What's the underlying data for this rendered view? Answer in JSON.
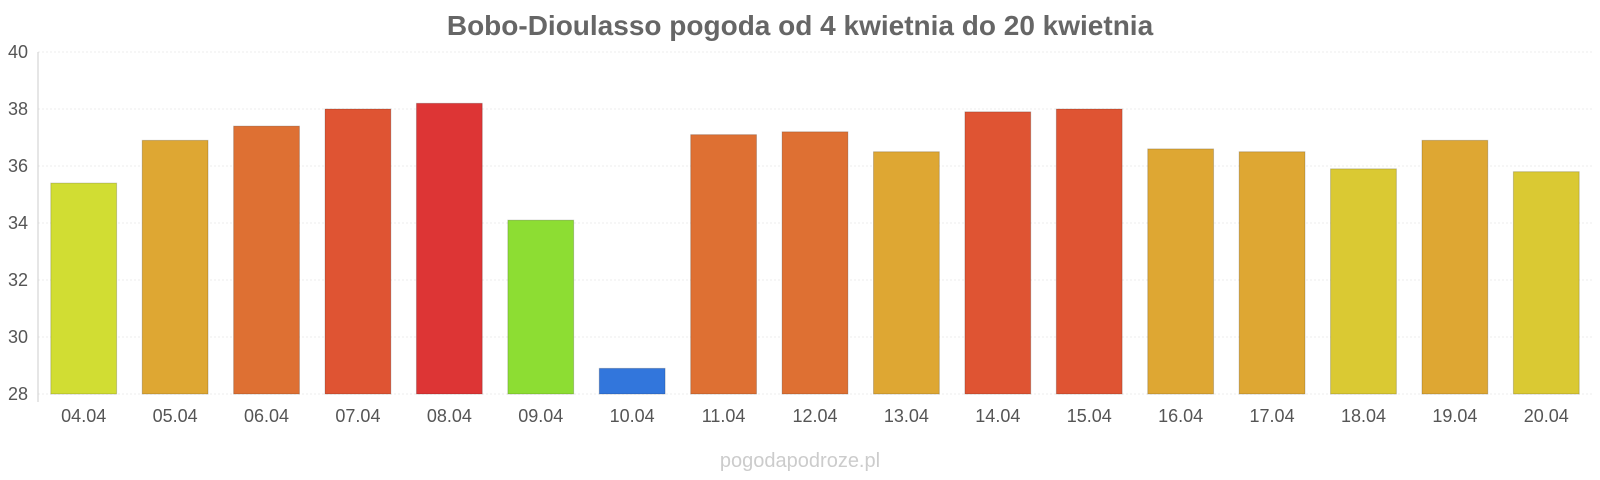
{
  "chart_data": {
    "type": "bar",
    "title": "Bobo-Dioulasso pogoda od 4 kwietnia do 20 kwietnia",
    "xlabel": "",
    "ylabel": "",
    "categories": [
      "04.04",
      "05.04",
      "06.04",
      "07.04",
      "08.04",
      "09.04",
      "10.04",
      "11.04",
      "12.04",
      "13.04",
      "14.04",
      "15.04",
      "16.04",
      "17.04",
      "18.04",
      "19.04",
      "20.04"
    ],
    "values": [
      35.4,
      36.9,
      37.4,
      38.0,
      38.2,
      34.1,
      28.9,
      37.1,
      37.2,
      36.5,
      37.9,
      38.0,
      36.6,
      36.5,
      35.9,
      36.9,
      35.8
    ],
    "colors": [
      "#d1dd33",
      "#dea733",
      "#de7033",
      "#df5433",
      "#dd3535",
      "#8ddd33",
      "#3276dc",
      "#de7033",
      "#de7033",
      "#dea733",
      "#df5433",
      "#df5433",
      "#dea733",
      "#dea733",
      "#dac933",
      "#dea733",
      "#dac933"
    ],
    "ylim": [
      28,
      40
    ],
    "yticks": [
      28,
      30,
      32,
      34,
      36,
      38,
      40
    ],
    "grid": true,
    "legend": "none"
  },
  "watermark": "pogodapodroze.pl"
}
